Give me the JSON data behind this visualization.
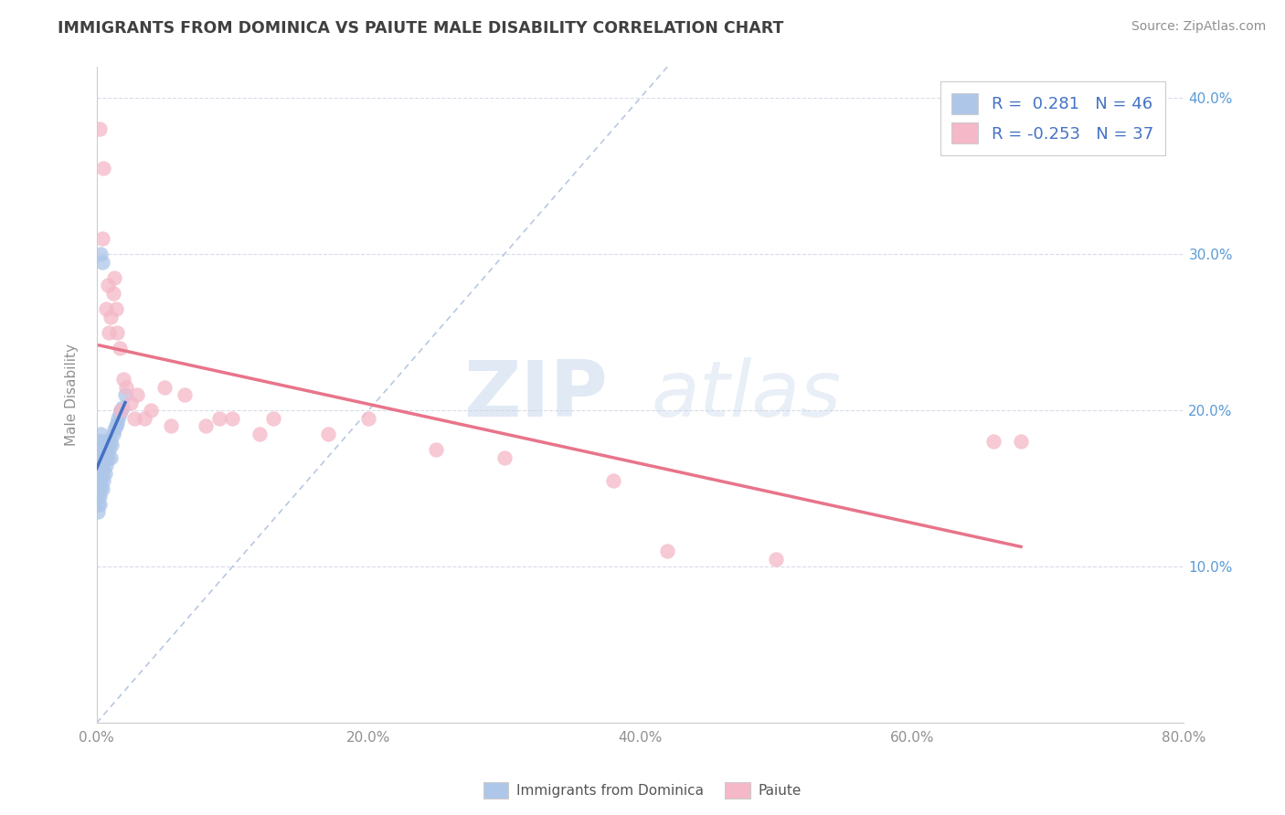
{
  "title": "IMMIGRANTS FROM DOMINICA VS PAIUTE MALE DISABILITY CORRELATION CHART",
  "source_text": "Source: ZipAtlas.com",
  "ylabel": "Male Disability",
  "watermark_zip": "ZIP",
  "watermark_atlas": "atlas",
  "legend_entries": [
    {
      "label": "Immigrants from Dominica",
      "R": "0.281",
      "N": "46",
      "color": "#aec6e8"
    },
    {
      "label": "Paiute",
      "R": "-0.253",
      "N": "37",
      "color": "#f4b8c8"
    }
  ],
  "xmin": 0.0,
  "xmax": 0.8,
  "ymin": 0.0,
  "ymax": 0.42,
  "xticks": [
    0.0,
    0.2,
    0.4,
    0.6,
    0.8
  ],
  "yticks": [
    0.0,
    0.1,
    0.2,
    0.3,
    0.4
  ],
  "xtick_labels": [
    "0.0%",
    "20.0%",
    "40.0%",
    "60.0%",
    "80.0%"
  ],
  "left_ytick_labels": [
    "",
    "",
    "",
    "",
    ""
  ],
  "right_ytick_labels": [
    "",
    "10.0%",
    "20.0%",
    "30.0%",
    "40.0%"
  ],
  "blue_color": "#aec6e8",
  "pink_color": "#f4b8c8",
  "blue_line_color": "#4472c4",
  "pink_line_color": "#e8748a",
  "diag_line_color": "#b8c8e0",
  "background_color": "#ffffff",
  "title_color": "#404040",
  "axis_color": "#909090",
  "right_ytick_color": "#5b9bd5",
  "grid_color": "#d8dce8",
  "blue_x": [
    0.001,
    0.001,
    0.001,
    0.001,
    0.001,
    0.001,
    0.002,
    0.002,
    0.002,
    0.002,
    0.002,
    0.002,
    0.003,
    0.003,
    0.003,
    0.003,
    0.003,
    0.004,
    0.004,
    0.004,
    0.004,
    0.005,
    0.005,
    0.005,
    0.006,
    0.006,
    0.006,
    0.007,
    0.007,
    0.008,
    0.008,
    0.009,
    0.01,
    0.01,
    0.011,
    0.012,
    0.013,
    0.014,
    0.015,
    0.016,
    0.017,
    0.018,
    0.019,
    0.021,
    0.003,
    0.004
  ],
  "blue_y": [
    0.175,
    0.165,
    0.155,
    0.145,
    0.14,
    0.135,
    0.18,
    0.17,
    0.16,
    0.15,
    0.145,
    0.14,
    0.185,
    0.175,
    0.165,
    0.155,
    0.15,
    0.18,
    0.17,
    0.16,
    0.15,
    0.175,
    0.165,
    0.155,
    0.18,
    0.17,
    0.16,
    0.175,
    0.165,
    0.18,
    0.17,
    0.175,
    0.18,
    0.17,
    0.178,
    0.185,
    0.188,
    0.19,
    0.192,
    0.195,
    0.198,
    0.2,
    0.202,
    0.21,
    0.3,
    0.295
  ],
  "pink_x": [
    0.002,
    0.004,
    0.005,
    0.007,
    0.008,
    0.009,
    0.01,
    0.012,
    0.013,
    0.014,
    0.015,
    0.017,
    0.018,
    0.02,
    0.022,
    0.025,
    0.028,
    0.03,
    0.035,
    0.04,
    0.05,
    0.055,
    0.065,
    0.08,
    0.09,
    0.1,
    0.12,
    0.13,
    0.17,
    0.2,
    0.25,
    0.3,
    0.38,
    0.42,
    0.5,
    0.66,
    0.68
  ],
  "pink_y": [
    0.38,
    0.31,
    0.355,
    0.265,
    0.28,
    0.25,
    0.26,
    0.275,
    0.285,
    0.265,
    0.25,
    0.24,
    0.2,
    0.22,
    0.215,
    0.205,
    0.195,
    0.21,
    0.195,
    0.2,
    0.215,
    0.19,
    0.21,
    0.19,
    0.195,
    0.195,
    0.185,
    0.195,
    0.185,
    0.195,
    0.175,
    0.17,
    0.155,
    0.11,
    0.105,
    0.18,
    0.18
  ]
}
